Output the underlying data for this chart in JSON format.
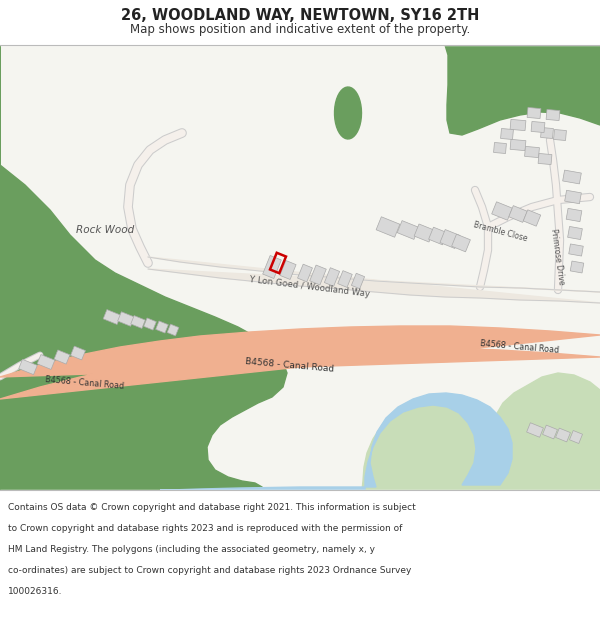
{
  "title": "26, WOODLAND WAY, NEWTOWN, SY16 2TH",
  "subtitle": "Map shows position and indicative extent of the property.",
  "bg_color": "#ffffff",
  "map_bg": "#f5f5f0",
  "green_color": "#6a9e5e",
  "light_green": "#c8ddb8",
  "road_color": "#f0b090",
  "water_color": "#a8d0e8",
  "building_color": "#d8d8d8",
  "building_outline": "#aaaaaa",
  "plot_color": "#cc0000",
  "footer_lines": [
    "Contains OS data © Crown copyright and database right 2021. This information is subject",
    "to Crown copyright and database rights 2023 and is reproduced with the permission of",
    "HM Land Registry. The polygons (including the associated geometry, namely x, y",
    "co-ordinates) are subject to Crown copyright and database rights 2023 Ordnance Survey",
    "100026316."
  ]
}
